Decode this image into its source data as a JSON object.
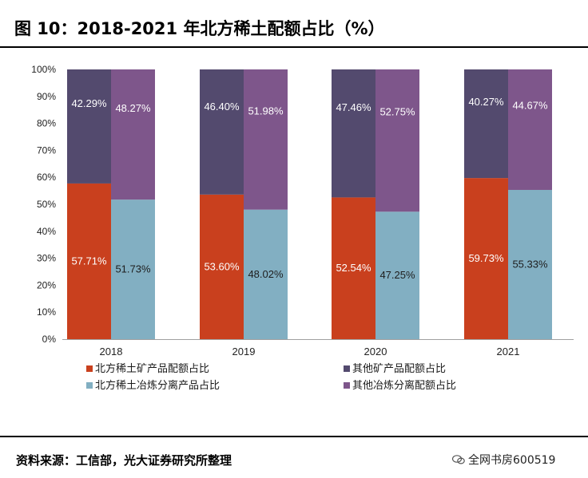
{
  "title": "图 10：2018-2021 年北方稀土配额占比（%）",
  "source": "资料来源：工信部，光大证券研究所整理",
  "watermark": "全网书房600519",
  "chart_data": {
    "type": "bar",
    "stacked": true,
    "categories": [
      "2018",
      "2019",
      "2020",
      "2021"
    ],
    "y_ticks": [
      "0%",
      "10%",
      "20%",
      "30%",
      "40%",
      "50%",
      "60%",
      "70%",
      "80%",
      "90%",
      "100%"
    ],
    "ylim": [
      0,
      100
    ],
    "stacks": [
      {
        "bottom": {
          "name": "北方稀土矿产品配额占比",
          "color": "#C9401E",
          "values": [
            57.71,
            53.6,
            52.54,
            59.73
          ],
          "labels": [
            "57.71%",
            "53.60%",
            "52.54%",
            "59.73%"
          ]
        },
        "top": {
          "name": "其他矿产品配额占比",
          "color": "#534A6E",
          "values": [
            42.29,
            46.4,
            47.46,
            40.27
          ],
          "labels": [
            "42.29%",
            "46.40%",
            "47.46%",
            "40.27%"
          ]
        }
      },
      {
        "bottom": {
          "name": "北方稀土冶炼分离产品占比",
          "color": "#82AFC2",
          "values": [
            51.73,
            48.02,
            47.25,
            55.33
          ],
          "labels": [
            "51.73%",
            "48.02%",
            "47.25%",
            "55.33%"
          ]
        },
        "top": {
          "name": "其他冶炼分离配额占比",
          "color": "#7E568B",
          "values": [
            48.27,
            51.98,
            52.75,
            44.67
          ],
          "labels": [
            "48.27%",
            "51.98%",
            "52.75%",
            "44.67%"
          ]
        }
      }
    ],
    "legend": [
      {
        "name": "北方稀土矿产品配额占比",
        "color": "#C9401E"
      },
      {
        "name": "其他矿产品配额占比",
        "color": "#534A6E"
      },
      {
        "name": "北方稀土冶炼分离产品占比",
        "color": "#82AFC2"
      },
      {
        "name": "其他冶炼分离配额占比",
        "color": "#7E568B"
      }
    ],
    "legend_position": "bottom",
    "grid": false
  }
}
